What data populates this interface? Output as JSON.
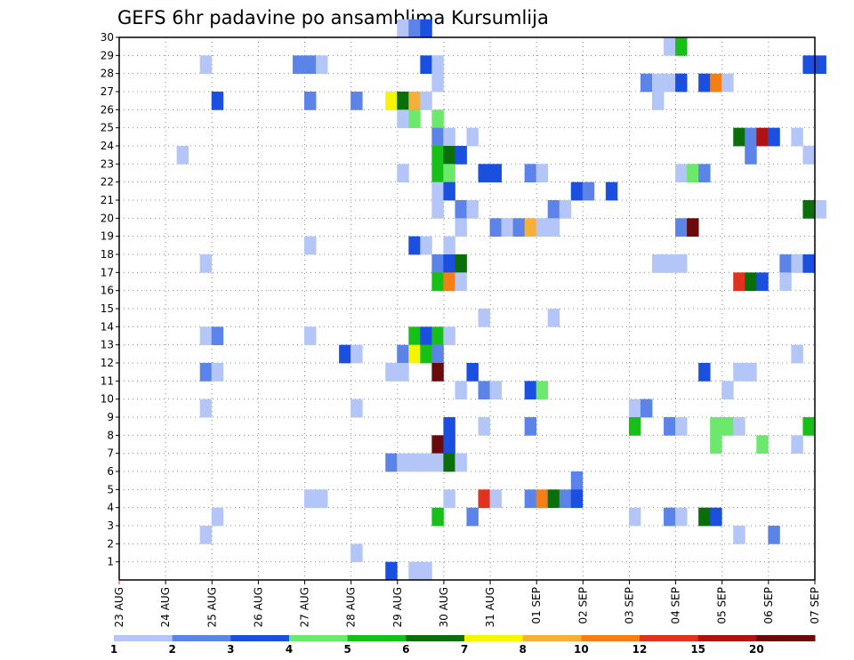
{
  "chart_data": {
    "type": "heatmap",
    "title": "GEFS 6hr padavine po ansamblima Kursumlija",
    "x_tick_labels": [
      "23 AUG",
      "24 AUG",
      "25 AUG",
      "26 AUG",
      "27 AUG",
      "28 AUG",
      "29 AUG",
      "30 AUG",
      "31 AUG",
      "01 SEP",
      "02 SEP",
      "03 SEP",
      "04 SEP",
      "05 SEP",
      "06 SEP",
      "07 SEP"
    ],
    "y_tick_labels": [
      1,
      2,
      3,
      4,
      5,
      6,
      7,
      8,
      9,
      10,
      11,
      12,
      13,
      14,
      15,
      16,
      17,
      18,
      19,
      20,
      21,
      22,
      23,
      24,
      25,
      26,
      27,
      28,
      29,
      30
    ],
    "xlim_days": [
      0,
      15
    ],
    "ylim": [
      0,
      30
    ],
    "grid": true,
    "colorbar": {
      "labels": [
        "1",
        "2",
        "3",
        "4",
        "5",
        "6",
        "7",
        "8",
        "10",
        "12",
        "15",
        "20"
      ],
      "colors": [
        "#b4c6f7",
        "#5b83e8",
        "#1a4fe0",
        "#6ce86c",
        "#16c016",
        "#0a6e0a",
        "#f5f500",
        "#f5b03a",
        "#f57f17",
        "#e0321e",
        "#b01212",
        "#6a0a0a"
      ]
    },
    "cells": [
      [
        30,
        5.99,
        0
      ],
      [
        30,
        6.24,
        1
      ],
      [
        30,
        6.49,
        2
      ],
      [
        29,
        11.74,
        0
      ],
      [
        29,
        11.99,
        4
      ],
      [
        28,
        1.74,
        0
      ],
      [
        28,
        3.74,
        1
      ],
      [
        28,
        3.99,
        1
      ],
      [
        28,
        4.24,
        0
      ],
      [
        28,
        6.49,
        2
      ],
      [
        28,
        6.74,
        0
      ],
      [
        28,
        14.74,
        2
      ],
      [
        28,
        14.99,
        2
      ],
      [
        27,
        6.74,
        0
      ],
      [
        27,
        11.24,
        1
      ],
      [
        27,
        11.49,
        0
      ],
      [
        27,
        11.74,
        0
      ],
      [
        27,
        11.99,
        2
      ],
      [
        27,
        12.49,
        2
      ],
      [
        27,
        12.74,
        8
      ],
      [
        27,
        12.99,
        0
      ],
      [
        26,
        1.99,
        2
      ],
      [
        26,
        3.99,
        1
      ],
      [
        26,
        4.99,
        1
      ],
      [
        26,
        5.74,
        6
      ],
      [
        26,
        5.99,
        5
      ],
      [
        26,
        6.24,
        7
      ],
      [
        26,
        6.49,
        0
      ],
      [
        26,
        11.49,
        0
      ],
      [
        25,
        5.99,
        0
      ],
      [
        25,
        6.24,
        3
      ],
      [
        25,
        6.74,
        3
      ],
      [
        24,
        6.74,
        1
      ],
      [
        24,
        6.99,
        0
      ],
      [
        24,
        7.49,
        0
      ],
      [
        24,
        13.24,
        5
      ],
      [
        24,
        13.49,
        1
      ],
      [
        24,
        13.74,
        10
      ],
      [
        24,
        13.99,
        2
      ],
      [
        24,
        14.49,
        0
      ],
      [
        23,
        1.24,
        0
      ],
      [
        23,
        6.74,
        4
      ],
      [
        23,
        6.99,
        5
      ],
      [
        23,
        7.24,
        2
      ],
      [
        23,
        13.49,
        1
      ],
      [
        23,
        14.74,
        0
      ],
      [
        22,
        5.99,
        0
      ],
      [
        22,
        6.74,
        4
      ],
      [
        22,
        6.99,
        3
      ],
      [
        22,
        7.74,
        2
      ],
      [
        22,
        7.99,
        2
      ],
      [
        22,
        8.74,
        1
      ],
      [
        22,
        8.99,
        0
      ],
      [
        22,
        11.99,
        0
      ],
      [
        22,
        12.24,
        3
      ],
      [
        22,
        12.49,
        1
      ],
      [
        21,
        6.74,
        0
      ],
      [
        21,
        6.99,
        2
      ],
      [
        21,
        9.74,
        2
      ],
      [
        21,
        9.99,
        1
      ],
      [
        21,
        10.49,
        2
      ],
      [
        20,
        6.74,
        0
      ],
      [
        20,
        7.24,
        1
      ],
      [
        20,
        7.49,
        0
      ],
      [
        20,
        9.24,
        1
      ],
      [
        20,
        9.49,
        0
      ],
      [
        20,
        14.74,
        5
      ],
      [
        20,
        14.99,
        0
      ],
      [
        19,
        7.24,
        0
      ],
      [
        19,
        7.99,
        1
      ],
      [
        19,
        8.24,
        0
      ],
      [
        19,
        8.49,
        1
      ],
      [
        19,
        8.74,
        7
      ],
      [
        19,
        8.99,
        0
      ],
      [
        19,
        9.24,
        0
      ],
      [
        19,
        11.99,
        1
      ],
      [
        19,
        12.24,
        11
      ],
      [
        18,
        3.99,
        0
      ],
      [
        18,
        6.24,
        2
      ],
      [
        18,
        6.49,
        0
      ],
      [
        18,
        6.99,
        0
      ],
      [
        17,
        1.74,
        0
      ],
      [
        17,
        6.74,
        1
      ],
      [
        17,
        6.99,
        2
      ],
      [
        17,
        7.24,
        5
      ],
      [
        17,
        11.49,
        0
      ],
      [
        17,
        11.74,
        0
      ],
      [
        17,
        11.99,
        0
      ],
      [
        17,
        14.24,
        1
      ],
      [
        17,
        14.49,
        0
      ],
      [
        17,
        14.74,
        2
      ],
      [
        16,
        6.74,
        4
      ],
      [
        16,
        6.99,
        8
      ],
      [
        16,
        7.24,
        0
      ],
      [
        16,
        13.24,
        9
      ],
      [
        16,
        13.49,
        5
      ],
      [
        16,
        13.74,
        2
      ],
      [
        16,
        14.24,
        0
      ],
      [
        14,
        7.74,
        0
      ],
      [
        14,
        9.24,
        0
      ],
      [
        13,
        1.74,
        0
      ],
      [
        13,
        1.99,
        1
      ],
      [
        13,
        3.99,
        0
      ],
      [
        13,
        6.24,
        4
      ],
      [
        13,
        6.49,
        2
      ],
      [
        13,
        6.74,
        4
      ],
      [
        13,
        6.99,
        0
      ],
      [
        12,
        4.74,
        2
      ],
      [
        12,
        4.99,
        0
      ],
      [
        12,
        5.99,
        1
      ],
      [
        12,
        6.24,
        6
      ],
      [
        12,
        6.49,
        4
      ],
      [
        12,
        6.74,
        1
      ],
      [
        12,
        14.49,
        0
      ],
      [
        11,
        1.74,
        1
      ],
      [
        11,
        1.99,
        0
      ],
      [
        11,
        5.74,
        0
      ],
      [
        11,
        5.99,
        0
      ],
      [
        11,
        6.74,
        11
      ],
      [
        11,
        7.49,
        2
      ],
      [
        11,
        12.49,
        2
      ],
      [
        11,
        13.24,
        0
      ],
      [
        11,
        13.49,
        0
      ],
      [
        10,
        7.24,
        0
      ],
      [
        10,
        7.74,
        1
      ],
      [
        10,
        7.99,
        0
      ],
      [
        10,
        8.74,
        2
      ],
      [
        10,
        8.99,
        3
      ],
      [
        10,
        12.99,
        0
      ],
      [
        9,
        1.74,
        0
      ],
      [
        9,
        4.99,
        0
      ],
      [
        9,
        10.99,
        0
      ],
      [
        9,
        11.24,
        1
      ],
      [
        8,
        6.99,
        2
      ],
      [
        8,
        7.74,
        0
      ],
      [
        8,
        8.74,
        1
      ],
      [
        8,
        10.99,
        4
      ],
      [
        8,
        11.74,
        1
      ],
      [
        8,
        11.99,
        0
      ],
      [
        8,
        12.74,
        3
      ],
      [
        8,
        12.99,
        3
      ],
      [
        8,
        13.24,
        0
      ],
      [
        8,
        14.74,
        4
      ],
      [
        7,
        6.74,
        11
      ],
      [
        7,
        6.99,
        2
      ],
      [
        7,
        12.74,
        3
      ],
      [
        7,
        13.74,
        3
      ],
      [
        7,
        14.49,
        0
      ],
      [
        6,
        5.74,
        1
      ],
      [
        6,
        5.99,
        0
      ],
      [
        6,
        6.24,
        0
      ],
      [
        6,
        6.49,
        0
      ],
      [
        6,
        6.74,
        0
      ],
      [
        6,
        6.99,
        5
      ],
      [
        6,
        7.24,
        0
      ],
      [
        5,
        9.74,
        1
      ],
      [
        4,
        3.99,
        0
      ],
      [
        4,
        4.24,
        0
      ],
      [
        4,
        6.99,
        0
      ],
      [
        4,
        7.74,
        9
      ],
      [
        4,
        7.99,
        0
      ],
      [
        4,
        8.74,
        1
      ],
      [
        4,
        8.99,
        8
      ],
      [
        4,
        9.24,
        5
      ],
      [
        4,
        9.49,
        1
      ],
      [
        4,
        9.74,
        2
      ],
      [
        3,
        1.99,
        0
      ],
      [
        3,
        6.74,
        4
      ],
      [
        3,
        7.49,
        1
      ],
      [
        3,
        10.99,
        0
      ],
      [
        3,
        11.74,
        1
      ],
      [
        3,
        11.99,
        0
      ],
      [
        3,
        12.49,
        5
      ],
      [
        3,
        12.74,
        2
      ],
      [
        2,
        1.74,
        0
      ],
      [
        2,
        13.24,
        0
      ],
      [
        2,
        13.99,
        1
      ],
      [
        1,
        4.99,
        0
      ],
      [
        0,
        5.74,
        2
      ],
      [
        0,
        6.24,
        0
      ],
      [
        0,
        6.49,
        0
      ]
    ]
  }
}
